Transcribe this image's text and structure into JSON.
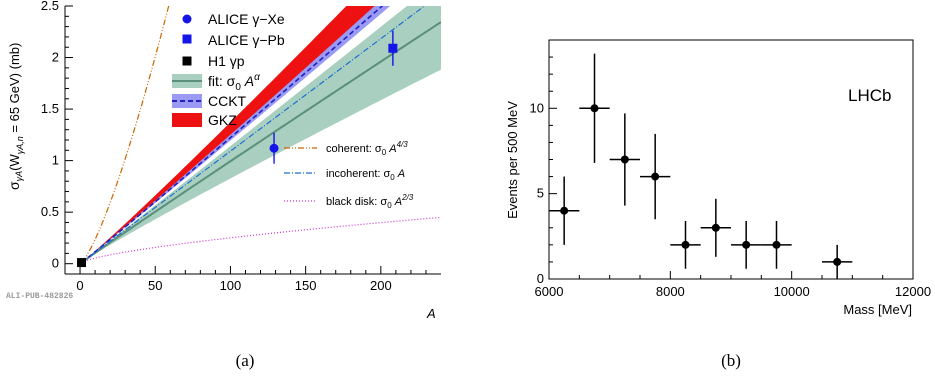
{
  "colors": {
    "alice_xe": "#1515e8",
    "alice_pb": "#1515e8",
    "h1": "#000000",
    "fit_line": "#5a8f79",
    "fit_band": "#a9cfc0",
    "ckkt_line": "#2020c0",
    "ckkt_band": "#9a9af5",
    "gkz": "#ee1111",
    "coherent": "#cc6600",
    "incoherent": "#1a6fcf",
    "black_disk": "#cc33cc"
  },
  "panel_a": {
    "caption": "(a)",
    "watermark": "ALI-PUB-482826",
    "ylabel_main": "σ",
    "ylabel_sub": "γA",
    "ylabel_open": "(W",
    "ylabel_w_sub": "γA,n",
    "ylabel_tail": " = 65 GeV) (mb)",
    "xlabel": "A",
    "legend": {
      "alice_xe": "ALICE γ−Xe",
      "alice_pb": "ALICE γ−Pb",
      "h1": "H1 γp",
      "fit_prefix": "fit: σ",
      "fit_zero": "0",
      "fit_a": " A",
      "fit_sup": "α",
      "ckkt": "CCKT",
      "gkz": "GKZ"
    },
    "annotations": {
      "coherent_prefix": "coherent: σ",
      "coherent_zero": "0",
      "coherent_a": " A",
      "coherent_sup": "4/3",
      "incoherent_prefix": "incoherent: σ",
      "incoherent_zero": "0",
      "incoherent_a": " A",
      "black_prefix": "black disk: σ",
      "black_zero": "0",
      "black_a": " A",
      "black_sup": "2/3"
    }
  },
  "panel_b": {
    "caption": "(b)",
    "experiment_label": "LHCb"
  },
  "chart_data": [
    {
      "type": "line",
      "xlabel": "A",
      "ylabel": "σγA(WγA,n = 65 GeV) (mb)",
      "xlim": [
        -10,
        240
      ],
      "ylim": [
        -0.1,
        2.5
      ],
      "x_ticks": [
        0,
        50,
        100,
        150,
        200
      ],
      "y_ticks": [
        0,
        0.5,
        1,
        1.5,
        2,
        2.5
      ],
      "y_tick_labels": [
        "0",
        "0.5",
        "1",
        "1.5",
        "2",
        "2.5"
      ],
      "sigma0": 0.0109,
      "points": [
        {
          "name": "ALICE γ−Xe",
          "x": 129,
          "y": 1.12,
          "yerr": 0.15,
          "marker": "circle"
        },
        {
          "name": "ALICE γ−Pb",
          "x": 208,
          "y": 2.09,
          "yerr": 0.17,
          "marker": "square"
        },
        {
          "name": "H1 γp",
          "x": 1,
          "y": 0.011,
          "yerr": 0.0,
          "marker": "square"
        }
      ],
      "curves": [
        {
          "name": "fit: σ0 A^α",
          "exponent": 0.98,
          "band": [
            0.94,
            1.01
          ]
        },
        {
          "name": "CCKT",
          "exponent": 1.025,
          "band": [
            1.02,
            1.03
          ]
        },
        {
          "name": "GKZ",
          "exponent": 1.035,
          "band": [
            1.025,
            1.05
          ]
        },
        {
          "name": "coherent: σ0 A^4/3",
          "exponent": 1.3333
        },
        {
          "name": "incoherent: σ0 A",
          "exponent": 1.0,
          "y_at_240": 2.62
        },
        {
          "name": "black disk: σ0 A^2/3",
          "exponent": 0.6667,
          "y_at_240": 0.45
        }
      ]
    },
    {
      "type": "scatter",
      "xlabel": "Mass [MeV]",
      "ylabel": "Events per 500 MeV",
      "xlim": [
        6000,
        12000
      ],
      "ylim": [
        0,
        14
      ],
      "x_ticks": [
        6000,
        8000,
        10000,
        12000
      ],
      "x_tick_labels": [
        "6000",
        "8000",
        "10000",
        "12000"
      ],
      "y_ticks": [
        0,
        5,
        10
      ],
      "y_tick_labels": [
        "0",
        "5",
        "10"
      ],
      "bin_half_width": 250,
      "points": [
        {
          "x": 6250,
          "y": 4,
          "yerr": [
            2,
            2
          ]
        },
        {
          "x": 6750,
          "y": 10,
          "yerr": [
            3.2,
            3.2
          ]
        },
        {
          "x": 7250,
          "y": 7,
          "yerr": [
            2.7,
            2.7
          ]
        },
        {
          "x": 7750,
          "y": 6,
          "yerr": [
            2.5,
            2.5
          ]
        },
        {
          "x": 8250,
          "y": 2,
          "yerr": [
            1.4,
            1.4
          ]
        },
        {
          "x": 8750,
          "y": 3,
          "yerr": [
            1.7,
            1.7
          ]
        },
        {
          "x": 9250,
          "y": 2,
          "yerr": [
            1.4,
            1.4
          ]
        },
        {
          "x": 9750,
          "y": 2,
          "yerr": [
            1.4,
            1.4
          ]
        },
        {
          "x": 10750,
          "y": 1,
          "yerr": [
            1,
            1
          ]
        }
      ]
    }
  ]
}
